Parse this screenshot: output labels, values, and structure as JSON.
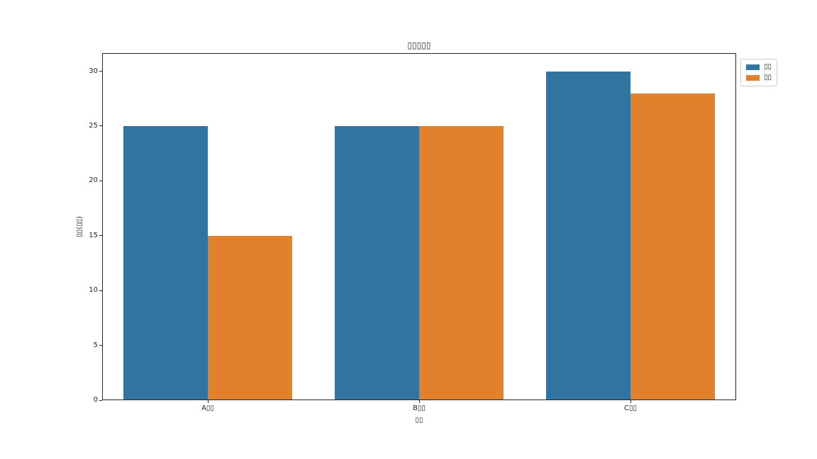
{
  "chart_data": {
    "type": "bar",
    "title": "▯▯▯▯▯",
    "xlabel": "▯▯",
    "ylabel": "▯▯(▯▯)",
    "categories": [
      "A▯▯",
      "B▯▯",
      "C▯▯"
    ],
    "series": [
      {
        "name": "▯▯",
        "color": "#3274a1",
        "values": [
          25,
          25,
          30
        ]
      },
      {
        "name": "▯▯",
        "color": "#e1812c",
        "values": [
          15,
          25,
          28
        ]
      }
    ],
    "yticks": [
      0,
      5,
      10,
      15,
      20,
      25,
      30
    ],
    "ylim": [
      0,
      31.65
    ],
    "grid": false,
    "legend_position": "upper right, outside axes",
    "axis_color": "#262626",
    "legend_border_color": "#cccccc",
    "background_color": "#ffffff"
  }
}
